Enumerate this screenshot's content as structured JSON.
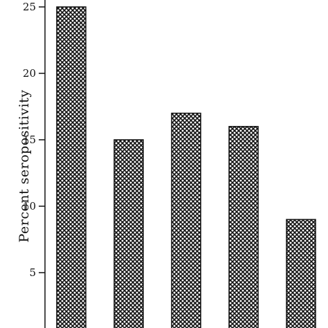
{
  "chart_data": {
    "type": "bar",
    "title": "",
    "xlabel": "",
    "ylabel": "Percent seropositivity",
    "ylim": [
      0,
      25
    ],
    "yticks": [
      5,
      10,
      15,
      20,
      25
    ],
    "grid": false,
    "series": [
      {
        "values": [
          25,
          15,
          17,
          16,
          9
        ]
      }
    ],
    "bar_fill": "crosshatch",
    "colors": {
      "bar_edge": "#111111",
      "axis": "#111111",
      "hatch": "#111111",
      "background": "#ffffff"
    }
  }
}
